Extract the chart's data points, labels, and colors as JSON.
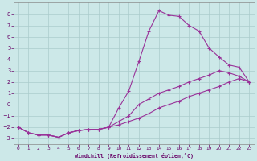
{
  "background_color": "#cce8e8",
  "grid_color": "#aacccc",
  "line_color": "#993399",
  "marker": "+",
  "xlabel": "Windchill (Refroidissement éolien,°C)",
  "xlabel_color": "#660066",
  "ylabel_color": "#660066",
  "xlim": [
    -0.5,
    23.5
  ],
  "ylim": [
    -3.5,
    9.0
  ],
  "yticks": [
    -3,
    -2,
    -1,
    0,
    1,
    2,
    3,
    4,
    5,
    6,
    7,
    8
  ],
  "xticks": [
    0,
    1,
    2,
    3,
    4,
    5,
    6,
    7,
    8,
    9,
    10,
    11,
    12,
    13,
    14,
    15,
    16,
    17,
    18,
    19,
    20,
    21,
    22,
    23
  ],
  "curve1_x": [
    0,
    1,
    2,
    3,
    4,
    5,
    6,
    7,
    8,
    9,
    10,
    11,
    12,
    13,
    14,
    15,
    16,
    17,
    18,
    19,
    20,
    21,
    22,
    23
  ],
  "curve1_y": [
    -2.0,
    -2.5,
    -2.7,
    -2.7,
    -2.9,
    -2.5,
    -2.3,
    -2.2,
    -2.2,
    -2.0,
    -0.3,
    1.2,
    3.8,
    6.5,
    8.3,
    7.9,
    7.8,
    7.0,
    6.5,
    5.0,
    4.2,
    3.5,
    3.3,
    2.0
  ],
  "curve2_x": [
    0,
    1,
    2,
    3,
    4,
    5,
    6,
    7,
    8,
    9,
    10,
    11,
    12,
    13,
    14,
    15,
    16,
    17,
    18,
    19,
    20,
    21,
    22,
    23
  ],
  "curve2_y": [
    -2.0,
    -2.5,
    -2.7,
    -2.7,
    -2.9,
    -2.5,
    -2.3,
    -2.2,
    -2.2,
    -2.0,
    -1.5,
    -1.0,
    0.0,
    0.5,
    1.0,
    1.3,
    1.6,
    2.0,
    2.3,
    2.6,
    3.0,
    2.8,
    2.5,
    2.0
  ],
  "curve3_x": [
    0,
    1,
    2,
    3,
    4,
    5,
    6,
    7,
    8,
    9,
    10,
    11,
    12,
    13,
    14,
    15,
    16,
    17,
    18,
    19,
    20,
    21,
    22,
    23
  ],
  "curve3_y": [
    -2.0,
    -2.5,
    -2.7,
    -2.7,
    -2.9,
    -2.5,
    -2.3,
    -2.2,
    -2.2,
    -2.0,
    -1.8,
    -1.5,
    -1.2,
    -0.8,
    -0.3,
    0.0,
    0.3,
    0.7,
    1.0,
    1.3,
    1.6,
    2.0,
    2.3,
    2.0
  ]
}
